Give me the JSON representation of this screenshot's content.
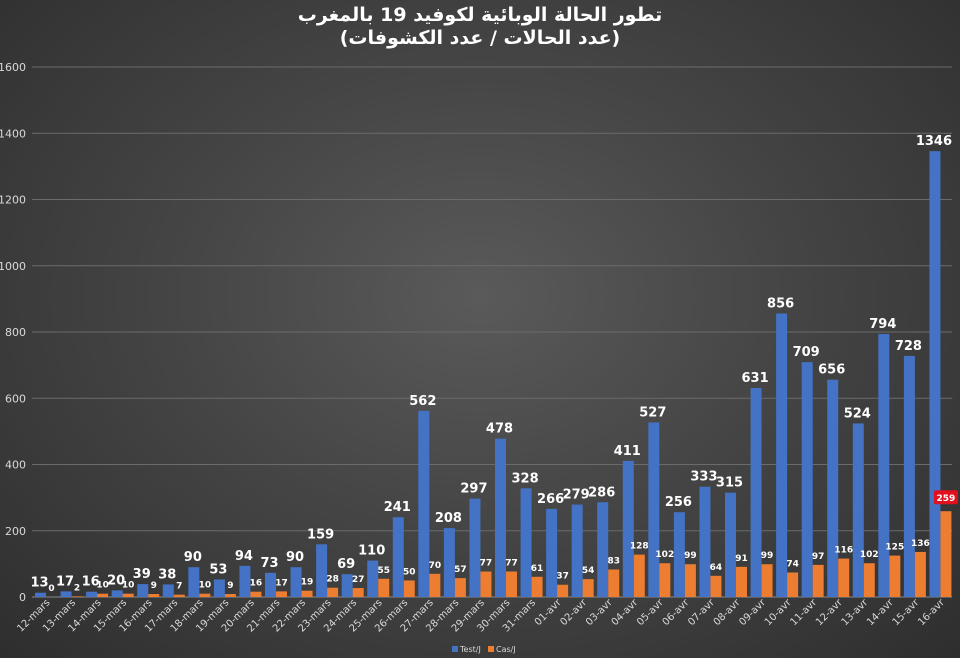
{
  "chart_data": {
    "type": "bar",
    "title": "تطور الحالة الوبائية لكوفيد 19 بالمغرب",
    "subtitle": "(عدد  الحالات / عدد الكشوفات)",
    "categories": [
      "12-mars",
      "13-mars",
      "14-mars",
      "15-mars",
      "16-mars",
      "17-mars",
      "18-mars",
      "19-mars",
      "20-mars",
      "21-mars",
      "22-mars",
      "23-mars",
      "24-mars",
      "25-mars",
      "26-mars",
      "27-mars",
      "28-mars",
      "29-mars",
      "30-mars",
      "31-mars",
      "01-avr",
      "02-avr",
      "03-avr",
      "04-avr",
      "05-avr",
      "06-avr",
      "07-avr",
      "08-avr",
      "09-avr",
      "10-avr",
      "11-avr",
      "12-avr",
      "13-avr",
      "14-avr",
      "15-avr",
      "16-avr"
    ],
    "series": [
      {
        "name": "Test/J",
        "color": "#4472c4",
        "values": [
          13,
          17,
          16,
          20,
          39,
          38,
          90,
          53,
          94,
          73,
          90,
          159,
          69,
          110,
          241,
          562,
          208,
          297,
          478,
          328,
          266,
          279,
          286,
          411,
          527,
          256,
          333,
          315,
          631,
          856,
          709,
          656,
          524,
          794,
          728,
          1346
        ]
      },
      {
        "name": "Cas/J",
        "color": "#ed7d31",
        "values": [
          0,
          2,
          10,
          10,
          9,
          7,
          10,
          9,
          16,
          17,
          19,
          28,
          27,
          55,
          50,
          70,
          57,
          77,
          77,
          61,
          37,
          54,
          83,
          128,
          102,
          99,
          64,
          91,
          99,
          74,
          97,
          116,
          102,
          125,
          136,
          259
        ]
      }
    ],
    "ylim": [
      0,
      1600
    ],
    "yticks": [
      0,
      200,
      400,
      600,
      800,
      1000,
      1200,
      1400,
      1600
    ],
    "highlight": {
      "series": "Cas/J",
      "index": 35,
      "color": "#e0101e"
    },
    "grid": true,
    "legend_position": "bottom-center"
  }
}
